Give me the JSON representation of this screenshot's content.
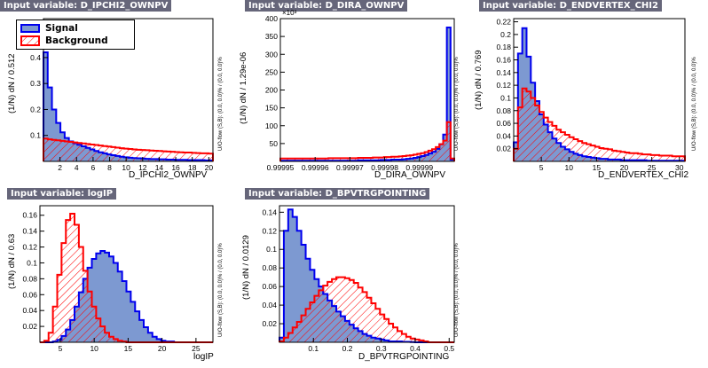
{
  "colors": {
    "signal_fill": "#7d99d1",
    "signal_line": "#0000ee",
    "background_line": "#ff0000",
    "title_bg": "#66667a"
  },
  "legend": {
    "signal": "Signal",
    "background": "Background"
  },
  "panels": [
    {
      "title": "Input variable: D_IPCHI2_OWNPV",
      "ylabel": "(1/N) dN / 0.512",
      "xlabel": "D_IPCHI2_OWNPV",
      "uflabel": "U/O-flow (S,B): (0.0, 0.0)% / (0.0, 0.0)%",
      "exp": ""
    },
    {
      "title": "Input variable: D_DIRA_OWNPV",
      "ylabel": "(1/N) dN / 1.29e-06",
      "xlabel": "D_DIRA_OWNPV",
      "uflabel": "U/O-flow (S,B): (0.0, 0.0)% / (0.0, 0.0)%",
      "exp": "×10³"
    },
    {
      "title": "Input variable: D_ENDVERTEX_CHI2",
      "ylabel": "(1/N) dN / 0.769",
      "xlabel": "D_ENDVERTEX_CHI2",
      "uflabel": "U/O-flow (S,B): (0.0, 0.0)% / (0.0, 0.0)%",
      "exp": ""
    },
    {
      "title": "Input variable: logIP",
      "ylabel": "(1/N) dN / 0.63",
      "xlabel": "logIP",
      "uflabel": "U/O-flow (S,B): (0.0, 0.0)% / (0.0, 0.0)%",
      "exp": ""
    },
    {
      "title": "Input variable: D_BPVTRGPOINTING",
      "ylabel": "(1/N) dN / 0.0129",
      "xlabel": "D_BPVTRGPOINTING",
      "uflabel": "U/O-flow (S,B): (0.0, 0.0)% / (0.0, 0.0)%",
      "exp": ""
    }
  ],
  "chart_data": [
    {
      "type": "histogram",
      "title": "Input variable: D_IPCHI2_OWNPV",
      "xlabel": "D_IPCHI2_OWNPV",
      "ylabel": "(1/N) dN / 0.512",
      "xlim": [
        0,
        20.5
      ],
      "ylim": [
        0,
        0.55
      ],
      "xticks": [
        2,
        4,
        6,
        8,
        10,
        12,
        14,
        16,
        18,
        20
      ],
      "xticklabels": [
        "2",
        "4",
        "6",
        "8",
        "10",
        "12",
        "14",
        "16",
        "18",
        "20"
      ],
      "yticks": [
        0.1,
        0.2,
        0.3,
        0.4,
        0.5
      ],
      "yticklabels": [
        "0.1",
        "0.2",
        "0.3",
        "0.4",
        "0.5"
      ],
      "series": [
        {
          "name": "Signal",
          "values": [
            0.42,
            0.285,
            0.2,
            0.148,
            0.112,
            0.09,
            0.077,
            0.07,
            0.064,
            0.058,
            0.052,
            0.046,
            0.04,
            0.035,
            0.031,
            0.027,
            0.024,
            0.021,
            0.018,
            0.016,
            0.014,
            0.013,
            0.012,
            0.011,
            0.01,
            0.009,
            0.009,
            0.008,
            0.008,
            0.007,
            0.007,
            0.006,
            0.006,
            0.006,
            0.005,
            0.005,
            0.005,
            0.005,
            0.004,
            0.004
          ]
        },
        {
          "name": "Background",
          "values": [
            0.088,
            0.085,
            0.083,
            0.081,
            0.079,
            0.077,
            0.075,
            0.073,
            0.071,
            0.069,
            0.067,
            0.065,
            0.063,
            0.061,
            0.059,
            0.057,
            0.055,
            0.053,
            0.051,
            0.049,
            0.048,
            0.046,
            0.045,
            0.044,
            0.043,
            0.042,
            0.041,
            0.04,
            0.039,
            0.038,
            0.037,
            0.036,
            0.035,
            0.034,
            0.034,
            0.033,
            0.032,
            0.031,
            0.031,
            0.03
          ]
        }
      ]
    },
    {
      "type": "histogram",
      "title": "Input variable: D_DIRA_OWNPV",
      "xlabel": "D_DIRA_OWNPV",
      "ylabel": "(1/N) dN / 1.29e-06",
      "xlim": [
        0.99995,
        1.0
      ],
      "ylim": [
        0,
        400
      ],
      "xticks": [
        0.99995,
        0.99996,
        0.99997,
        0.99998,
        0.99999
      ],
      "xticklabels": [
        "0.99995",
        "0.99996",
        "0.99997",
        "0.99998",
        "0.99999"
      ],
      "yticks": [
        50,
        100,
        150,
        200,
        250,
        300,
        350,
        400
      ],
      "yticklabels": [
        "50",
        "100",
        "150",
        "200",
        "250",
        "300",
        "350",
        "400"
      ],
      "series": [
        {
          "name": "Signal",
          "values": [
            2,
            2,
            2,
            2,
            2,
            2,
            2,
            2,
            2,
            2,
            2,
            2,
            2,
            2,
            2,
            2,
            2,
            2,
            2,
            2,
            2,
            3,
            3,
            3,
            3,
            3,
            3,
            4,
            4,
            4,
            5,
            5,
            5,
            6,
            7,
            8,
            10,
            12,
            15,
            18,
            22,
            27,
            35,
            48,
            75,
            375,
            5
          ]
        },
        {
          "name": "Background",
          "values": [
            8,
            8,
            8,
            8,
            8,
            8,
            8,
            8,
            8,
            8,
            8,
            8,
            8,
            9,
            9,
            9,
            9,
            9,
            9,
            9,
            9,
            10,
            10,
            10,
            10,
            11,
            11,
            11,
            12,
            12,
            13,
            13,
            14,
            15,
            16,
            17,
            19,
            21,
            23,
            26,
            30,
            34,
            40,
            48,
            58,
            110,
            8
          ]
        }
      ]
    },
    {
      "type": "histogram",
      "title": "Input variable: D_ENDVERTEX_CHI2",
      "xlabel": "D_ENDVERTEX_CHI2",
      "ylabel": "(1/N) dN / 0.769",
      "xlim": [
        0,
        31
      ],
      "ylim": [
        0,
        0.225
      ],
      "xticks": [
        5,
        10,
        15,
        20,
        25,
        30
      ],
      "xticklabels": [
        "5",
        "10",
        "15",
        "20",
        "25",
        "30"
      ],
      "yticks": [
        0.02,
        0.04,
        0.06,
        0.08,
        0.1,
        0.12,
        0.14,
        0.16,
        0.18,
        0.2,
        0.22
      ],
      "yticklabels": [
        "0.02",
        "0.04",
        "0.06",
        "0.08",
        "0.1",
        "0.12",
        "0.14",
        "0.16",
        "0.18",
        "0.2",
        "0.22"
      ],
      "series": [
        {
          "name": "Signal",
          "values": [
            0.03,
            0.17,
            0.21,
            0.165,
            0.124,
            0.095,
            0.074,
            0.058,
            0.046,
            0.036,
            0.029,
            0.023,
            0.019,
            0.015,
            0.012,
            0.01,
            0.008,
            0.007,
            0.006,
            0.005,
            0.004,
            0.004,
            0.003,
            0.003,
            0.003,
            0.002,
            0.002,
            0.002,
            0.002,
            0.002,
            0.002,
            0.001,
            0.001,
            0.001,
            0.001,
            0.001,
            0.001,
            0.001,
            0.001,
            0.001
          ]
        },
        {
          "name": "Background",
          "values": [
            0.02,
            0.085,
            0.115,
            0.11,
            0.1,
            0.088,
            0.078,
            0.069,
            0.062,
            0.056,
            0.05,
            0.046,
            0.042,
            0.038,
            0.035,
            0.032,
            0.029,
            0.027,
            0.025,
            0.023,
            0.021,
            0.02,
            0.019,
            0.017,
            0.016,
            0.015,
            0.014,
            0.013,
            0.013,
            0.012,
            0.011,
            0.011,
            0.01,
            0.01,
            0.009,
            0.009,
            0.009,
            0.008,
            0.008,
            0.008
          ]
        }
      ]
    },
    {
      "type": "histogram",
      "title": "Input variable: logIP",
      "xlabel": "logIP",
      "ylabel": "(1/N) dN / 0.63",
      "xlim": [
        2,
        27.5
      ],
      "ylim": [
        0,
        0.172
      ],
      "xticks": [
        5,
        10,
        15,
        20,
        25
      ],
      "xticklabels": [
        "5",
        "10",
        "15",
        "20",
        "25"
      ],
      "yticks": [
        0.02,
        0.04,
        0.06,
        0.08,
        0.1,
        0.12,
        0.14,
        0.16
      ],
      "yticklabels": [
        "0.02",
        "0.04",
        "0.06",
        "0.08",
        "0.1",
        "0.12",
        "0.14",
        "0.16"
      ],
      "series": [
        {
          "name": "Signal",
          "values": [
            0,
            0,
            0,
            0.001,
            0.003,
            0.008,
            0.016,
            0.028,
            0.045,
            0.063,
            0.08,
            0.094,
            0.105,
            0.112,
            0.115,
            0.113,
            0.108,
            0.1,
            0.089,
            0.077,
            0.064,
            0.051,
            0.039,
            0.028,
            0.019,
            0.012,
            0.007,
            0.004,
            0.002,
            0.001,
            0.001,
            0,
            0,
            0,
            0,
            0,
            0,
            0,
            0,
            0
          ]
        },
        {
          "name": "Background",
          "values": [
            0,
            0.002,
            0.012,
            0.045,
            0.085,
            0.125,
            0.154,
            0.162,
            0.148,
            0.12,
            0.09,
            0.064,
            0.045,
            0.03,
            0.02,
            0.012,
            0.007,
            0.004,
            0.002,
            0.001,
            0,
            0,
            0,
            0,
            0,
            0,
            0,
            0,
            0,
            0,
            0,
            0,
            0,
            0,
            0,
            0,
            0,
            0,
            0,
            0
          ]
        }
      ]
    },
    {
      "type": "histogram",
      "title": "Input variable: D_BPVTRGPOINTING",
      "xlabel": "D_BPVTRGPOINTING",
      "ylabel": "(1/N) dN / 0.0129",
      "xlim": [
        0,
        0.515
      ],
      "ylim": [
        0,
        0.147
      ],
      "xticks": [
        0.1,
        0.2,
        0.3,
        0.4,
        0.5
      ],
      "xticklabels": [
        "0.1",
        "0.2",
        "0.3",
        "0.4",
        "0.5"
      ],
      "yticks": [
        0.02,
        0.04,
        0.06,
        0.08,
        0.1,
        0.12,
        0.14
      ],
      "yticklabels": [
        "0.02",
        "0.04",
        "0.06",
        "0.08",
        "0.1",
        "0.12",
        "0.14"
      ],
      "series": [
        {
          "name": "Signal",
          "values": [
            0.005,
            0.12,
            0.143,
            0.135,
            0.12,
            0.105,
            0.09,
            0.078,
            0.068,
            0.06,
            0.052,
            0.045,
            0.039,
            0.033,
            0.028,
            0.023,
            0.019,
            0.015,
            0.012,
            0.009,
            0.007,
            0.005,
            0.004,
            0.003,
            0.002,
            0.001,
            0.001,
            0.001,
            0.0005,
            0.0005,
            0.0003,
            0,
            0,
            0,
            0,
            0,
            0,
            0,
            0,
            0
          ]
        },
        {
          "name": "Background",
          "values": [
            0.001,
            0.005,
            0.01,
            0.016,
            0.022,
            0.029,
            0.036,
            0.043,
            0.05,
            0.056,
            0.061,
            0.065,
            0.068,
            0.07,
            0.07,
            0.069,
            0.067,
            0.064,
            0.059,
            0.054,
            0.048,
            0.042,
            0.036,
            0.03,
            0.025,
            0.02,
            0.016,
            0.012,
            0.009,
            0.006,
            0.004,
            0.003,
            0.002,
            0.001,
            0,
            0,
            0,
            0,
            0,
            0
          ]
        }
      ]
    }
  ]
}
